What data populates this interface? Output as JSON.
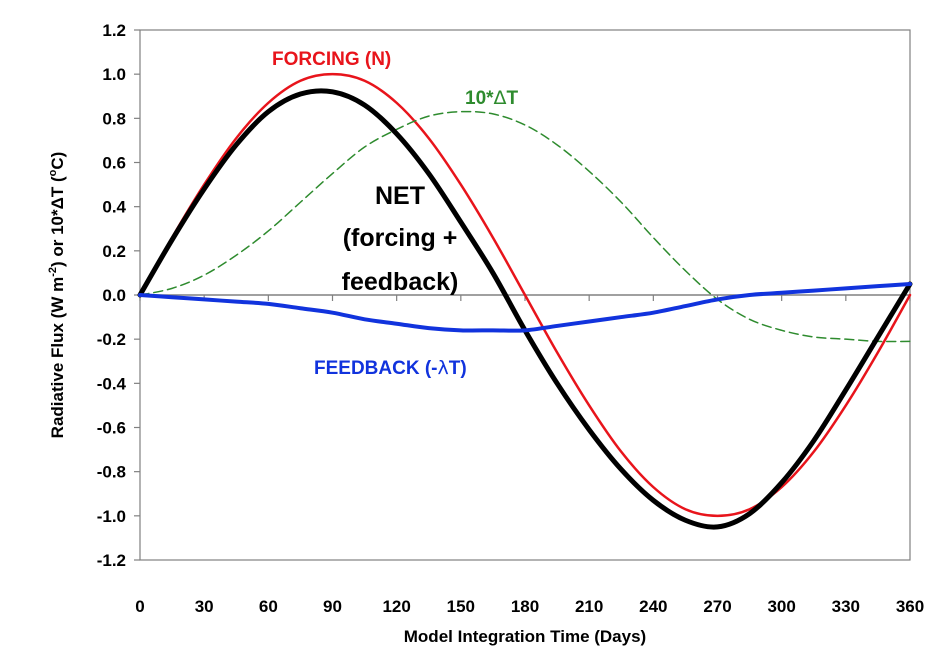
{
  "chart_data": {
    "type": "line",
    "title": "",
    "xlabel": "Model Integration Time (Days)",
    "ylabel_parts": {
      "a": "Radiative Flux (W m",
      "b": "-2",
      "c": ") or 10*ΔT (",
      "d": "o",
      "e": "C)"
    },
    "xlim": [
      0,
      360
    ],
    "ylim": [
      -1.2,
      1.2
    ],
    "x_ticks": [
      0,
      30,
      60,
      90,
      120,
      150,
      180,
      210,
      240,
      270,
      300,
      330,
      360
    ],
    "x_tick_labels": [
      "0",
      "30",
      "60",
      "90",
      "120",
      "150",
      "180",
      "210",
      "240",
      "270",
      "300",
      "330",
      "360"
    ],
    "y_ticks": [
      -1.2,
      -1.0,
      -0.8,
      -0.6,
      -0.4,
      -0.2,
      0.0,
      0.2,
      0.4,
      0.6,
      0.8,
      1.0,
      1.2
    ],
    "y_tick_labels": [
      "-1.2",
      "-1.0",
      "-0.8",
      "-0.6",
      "-0.4",
      "-0.2",
      "0.0",
      "0.2",
      "0.4",
      "0.6",
      "0.8",
      "1.0",
      "1.2"
    ],
    "x": [
      0,
      15,
      30,
      45,
      60,
      75,
      90,
      105,
      120,
      135,
      150,
      165,
      180,
      195,
      210,
      225,
      240,
      255,
      270,
      285,
      300,
      315,
      330,
      345,
      360
    ],
    "series": [
      {
        "name": "FORCING (N)",
        "color": "#e8141b",
        "style": "solid",
        "width": 2.5,
        "values": [
          0.0,
          0.26,
          0.5,
          0.71,
          0.87,
          0.97,
          1.0,
          0.97,
          0.87,
          0.71,
          0.5,
          0.26,
          0.0,
          -0.26,
          -0.5,
          -0.71,
          -0.87,
          -0.97,
          -1.0,
          -0.97,
          -0.87,
          -0.71,
          -0.5,
          -0.26,
          0.0
        ]
      },
      {
        "name": "10*ΔT",
        "color": "#2e8b2e",
        "style": "dashed",
        "width": 1.5,
        "values": [
          0.0,
          0.03,
          0.09,
          0.18,
          0.29,
          0.42,
          0.55,
          0.67,
          0.75,
          0.81,
          0.83,
          0.82,
          0.77,
          0.68,
          0.56,
          0.42,
          0.26,
          0.11,
          -0.02,
          -0.11,
          -0.16,
          -0.19,
          -0.2,
          -0.21,
          -0.21
        ]
      },
      {
        "name": "NET (forcing + feedback)",
        "color": "#000000",
        "style": "solid",
        "width": 5,
        "values": [
          0.0,
          0.25,
          0.48,
          0.68,
          0.83,
          0.91,
          0.92,
          0.86,
          0.73,
          0.55,
          0.33,
          0.1,
          -0.16,
          -0.4,
          -0.61,
          -0.79,
          -0.93,
          -1.02,
          -1.05,
          -0.99,
          -0.85,
          -0.66,
          -0.43,
          -0.19,
          0.05
        ]
      },
      {
        "name": "FEEDBACK (-λT)",
        "color": "#1133dd",
        "style": "solid",
        "width": 4,
        "values": [
          0.0,
          -0.01,
          -0.02,
          -0.03,
          -0.04,
          -0.06,
          -0.08,
          -0.11,
          -0.13,
          -0.15,
          -0.16,
          -0.16,
          -0.16,
          -0.14,
          -0.12,
          -0.1,
          -0.08,
          -0.05,
          -0.02,
          0.0,
          0.01,
          0.02,
          0.03,
          0.04,
          0.05
        ]
      }
    ],
    "annotations": {
      "forcing": "FORCING (N)",
      "dt_prefix": "10*",
      "dt_delta": "Δ",
      "dt_suffix": "T",
      "net_line1": "NET",
      "net_line2": "(forcing +",
      "net_line3": "feedback)",
      "feedback_prefix": "FEEDBACK (-",
      "feedback_lambda": "λ",
      "feedback_suffix": "T)"
    },
    "colors": {
      "forcing": "#e8141b",
      "dt": "#2e8b2e",
      "net": "#000000",
      "feedback": "#1133dd",
      "axis": "#808080",
      "text": "#000000"
    }
  }
}
